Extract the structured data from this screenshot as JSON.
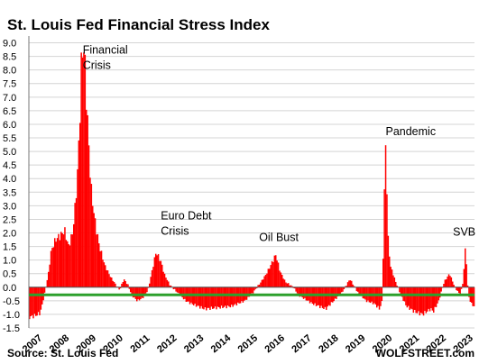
{
  "chart_data": {
    "type": "bar",
    "title": "St. Louis Fed Financial Stress Index",
    "source": "Source: St. Louis Fed",
    "brand": "WOLFSTREET.com",
    "ylim": [
      -1.5,
      9.25
    ],
    "y_ticks": [
      "9.0",
      "8.5",
      "8.0",
      "7.5",
      "7.0",
      "6.5",
      "6.0",
      "5.5",
      "5.0",
      "4.5",
      "4.0",
      "3.5",
      "3.0",
      "2.5",
      "2.0",
      "1.5",
      "1.0",
      "0.5",
      "0.0",
      "-0.5",
      "-1.0",
      "-1.5"
    ],
    "x_ticks": [
      "2007",
      "2008",
      "2009",
      "2010",
      "2011",
      "2012",
      "2013",
      "2014",
      "2015",
      "2016",
      "2017",
      "2018",
      "2019",
      "2020",
      "2021",
      "2022",
      "2023"
    ],
    "xlim": [
      2007.0,
      2023.55
    ],
    "grid": true,
    "bar_color": "#ff0000",
    "reference_line": {
      "value": -0.28,
      "color": "#2ca02c"
    },
    "series": [
      {
        "x": [
          2007.0,
          2007.2,
          2007.4,
          2007.55,
          2007.7,
          2007.8,
          2007.9,
          2008.0,
          2008.15,
          2008.3,
          2008.45,
          2008.6,
          2008.7,
          2008.8,
          2008.86,
          2008.92,
          2009.0,
          2009.1,
          2009.2,
          2009.3,
          2009.45,
          2009.6,
          2009.8,
          2010.0,
          2010.2,
          2010.35,
          2010.5,
          2010.65,
          2010.8,
          2011.0,
          2011.2,
          2011.4,
          2011.55,
          2011.7,
          2011.8,
          2011.9,
          2012.0,
          2012.2,
          2012.5,
          2012.8,
          2013.0,
          2013.5,
          2014.0,
          2014.5,
          2015.0,
          2015.3,
          2015.6,
          2015.8,
          2016.0,
          2016.15,
          2016.3,
          2016.5,
          2016.8,
          2017.0,
          2017.5,
          2018.0,
          2018.3,
          2018.6,
          2018.9,
          2019.2,
          2019.5,
          2019.8,
          2020.0,
          2020.1,
          2020.17,
          2020.22,
          2020.26,
          2020.3,
          2020.4,
          2020.6,
          2020.8,
          2021.0,
          2021.3,
          2021.6,
          2021.9,
          2022.0,
          2022.2,
          2022.4,
          2022.6,
          2022.8,
          2023.0,
          2023.1,
          2023.2,
          2023.25,
          2023.3,
          2023.4,
          2023.5
        ],
        "values": [
          -1.1,
          -1.05,
          -0.95,
          -0.3,
          0.5,
          1.3,
          1.6,
          1.8,
          1.9,
          2.1,
          1.5,
          2.0,
          3.0,
          4.5,
          6.0,
          8.0,
          9.2,
          7.3,
          5.2,
          3.5,
          2.3,
          1.5,
          0.8,
          0.4,
          0.1,
          -0.1,
          0.3,
          0.1,
          -0.3,
          -0.5,
          -0.4,
          -0.1,
          0.6,
          1.3,
          1.1,
          0.9,
          0.5,
          0.1,
          -0.2,
          -0.5,
          -0.6,
          -0.8,
          -0.75,
          -0.7,
          -0.5,
          -0.2,
          0.2,
          0.5,
          0.9,
          1.2,
          0.6,
          0.2,
          0.0,
          -0.3,
          -0.6,
          -0.8,
          -0.5,
          -0.2,
          0.3,
          -0.2,
          -0.5,
          -0.6,
          -0.8,
          -0.5,
          3.0,
          5.3,
          4.5,
          2.0,
          0.8,
          0.2,
          -0.3,
          -0.7,
          -0.9,
          -1.0,
          -0.8,
          -0.9,
          -0.5,
          0.2,
          0.5,
          0.0,
          -0.3,
          0.2,
          1.6,
          0.4,
          -0.3,
          -0.6,
          -0.7
        ]
      }
    ],
    "annotations": [
      {
        "lines": [
          "Financial",
          "Crisis"
        ],
        "x": 2009.0,
        "y": 8.6
      },
      {
        "lines": [
          "Euro Debt",
          "Crisis"
        ],
        "x": 2011.9,
        "y": 2.5
      },
      {
        "lines": [
          "Oil Bust"
        ],
        "x": 2015.55,
        "y": 1.7
      },
      {
        "lines": [
          "Pandemic"
        ],
        "x": 2020.25,
        "y": 5.6
      },
      {
        "lines": [
          "SVB"
        ],
        "x": 2022.75,
        "y": 1.9
      }
    ]
  }
}
